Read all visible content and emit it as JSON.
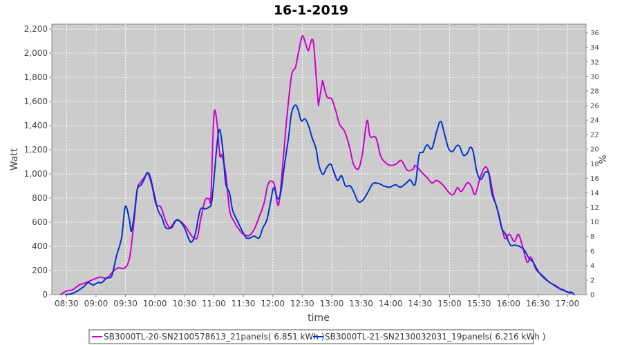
{
  "chart_data": {
    "type": "line",
    "title": "16-1-2019",
    "xlabel": "time",
    "ylabel": "Watt",
    "y2label": "%",
    "xlim": [
      "08:15",
      "17:19"
    ],
    "ylim": [
      0,
      2240
    ],
    "y2lim": [
      0,
      37.2
    ],
    "grid": true,
    "legend_position": "bottom",
    "x_ticks": [
      "08:30",
      "09:00",
      "09:30",
      "10:00",
      "10:30",
      "11:00",
      "11:30",
      "12:00",
      "12:30",
      "13:00",
      "13:30",
      "14:00",
      "14:30",
      "15:00",
      "15:30",
      "16:00",
      "16:30",
      "17:00"
    ],
    "y_ticks": [
      0,
      200,
      400,
      600,
      800,
      1000,
      1200,
      1400,
      1600,
      1800,
      2000,
      2200
    ],
    "y_tick_labels": [
      "0",
      "200",
      "400",
      "600",
      "800",
      "1,000",
      "1,200",
      "1,400",
      "1,600",
      "1,800",
      "2,000",
      "2,200"
    ],
    "y2_ticks": [
      0,
      2,
      4,
      6,
      8,
      10,
      12,
      14,
      16,
      18,
      20,
      22,
      24,
      26,
      28,
      30,
      32,
      34,
      36
    ],
    "series": [
      {
        "name": "SB3000TL-20-SN2100578613_21panels( 6.851 kWh )",
        "color": "#cc00cc",
        "x": [
          "08:24",
          "08:30",
          "08:36",
          "08:43",
          "08:50",
          "08:57",
          "09:04",
          "09:11",
          "09:16",
          "09:22",
          "09:29",
          "09:34",
          "09:38",
          "09:42",
          "09:45",
          "09:50",
          "09:53",
          "09:57",
          "10:01",
          "10:06",
          "10:11",
          "10:15",
          "10:18",
          "10:22",
          "10:27",
          "10:32",
          "10:38",
          "10:43",
          "10:46",
          "10:51",
          "10:55",
          "10:57",
          "11:00",
          "11:03",
          "11:06",
          "11:08",
          "11:12",
          "11:16",
          "11:21",
          "11:25",
          "11:30",
          "11:36",
          "11:41",
          "11:46",
          "11:51",
          "11:55",
          "11:59",
          "12:02",
          "12:06",
          "12:11",
          "12:14",
          "12:19",
          "12:23",
          "12:26",
          "12:30",
          "12:33",
          "12:36",
          "12:38",
          "12:40",
          "12:42",
          "12:46",
          "12:47",
          "12:50",
          "12:51",
          "12:55",
          "13:00",
          "13:04",
          "13:08",
          "13:13",
          "13:18",
          "13:22",
          "13:27",
          "13:31",
          "13:36",
          "13:39",
          "13:45",
          "13:50",
          "13:56",
          "14:01",
          "14:06",
          "14:11",
          "14:17",
          "14:23",
          "14:25",
          "14:32",
          "14:37",
          "14:42",
          "14:47",
          "14:53",
          "15:00",
          "15:04",
          "15:08",
          "15:12",
          "15:18",
          "15:22",
          "15:26",
          "15:31",
          "15:36",
          "15:40",
          "15:45",
          "15:50",
          "15:56",
          "16:01",
          "16:06",
          "16:10",
          "16:14",
          "16:19",
          "16:23",
          "16:28",
          "16:35",
          "16:42",
          "16:49",
          "16:54",
          "16:58",
          "17:03"
        ],
        "values": [
          0,
          30,
          40,
          80,
          100,
          125,
          145,
          135,
          180,
          220,
          220,
          300,
          550,
          870,
          925,
          980,
          1000,
          900,
          750,
          725,
          610,
          555,
          580,
          620,
          600,
          555,
          480,
          470,
          600,
          780,
          795,
          810,
          1480,
          1440,
          1155,
          1155,
          1010,
          700,
          600,
          545,
          500,
          490,
          540,
          640,
          755,
          910,
          940,
          900,
          745,
          1155,
          1440,
          1810,
          1880,
          2000,
          2140,
          2090,
          2020,
          2070,
          2115,
          2040,
          1610,
          1595,
          1740,
          1765,
          1640,
          1620,
          1525,
          1410,
          1355,
          1230,
          1085,
          1040,
          1155,
          1440,
          1310,
          1300,
          1145,
          1085,
          1070,
          1085,
          1110,
          1030,
          1040,
          1070,
          1010,
          970,
          925,
          945,
          910,
          840,
          830,
          885,
          855,
          925,
          900,
          830,
          965,
          1055,
          1010,
          810,
          670,
          470,
          500,
          440,
          500,
          410,
          270,
          310,
          210,
          155,
          100,
          70,
          40,
          30,
          10
        ]
      },
      {
        "name": "SB3000TL-21-SN2130032031_19panels( 6.216 kWh )",
        "color": "#0033cc",
        "x": [
          "08:29",
          "08:36",
          "08:43",
          "08:48",
          "08:52",
          "08:57",
          "09:02",
          "09:06",
          "09:11",
          "09:16",
          "09:21",
          "09:26",
          "09:29",
          "09:31",
          "09:34",
          "09:36",
          "09:39",
          "09:42",
          "09:46",
          "09:49",
          "09:52",
          "09:55",
          "09:59",
          "10:03",
          "10:07",
          "10:11",
          "10:17",
          "10:21",
          "10:25",
          "10:30",
          "10:34",
          "10:37",
          "10:41",
          "10:46",
          "10:51",
          "10:55",
          "10:58",
          "11:02",
          "11:04",
          "11:06",
          "11:09",
          "11:12",
          "11:16",
          "11:19",
          "11:24",
          "11:29",
          "11:33",
          "11:37",
          "11:41",
          "11:46",
          "11:50",
          "11:54",
          "11:58",
          "12:01",
          "12:05",
          "12:08",
          "12:12",
          "12:16",
          "12:19",
          "12:23",
          "12:26",
          "12:29",
          "12:33",
          "12:37",
          "12:40",
          "12:44",
          "12:47",
          "12:51",
          "12:55",
          "12:59",
          "13:02",
          "13:06",
          "13:10",
          "13:14",
          "13:19",
          "13:23",
          "13:27",
          "13:32",
          "13:37",
          "13:42",
          "13:48",
          "13:53",
          "13:59",
          "14:05",
          "14:10",
          "14:16",
          "14:20",
          "14:25",
          "14:29",
          "14:33",
          "14:37",
          "14:42",
          "14:47",
          "14:51",
          "14:55",
          "14:59",
          "15:03",
          "15:07",
          "15:10",
          "15:14",
          "15:18",
          "15:21",
          "15:24",
          "15:28",
          "15:32",
          "15:36",
          "15:40",
          "15:43",
          "15:48",
          "15:53",
          "15:57",
          "16:02",
          "16:06",
          "16:11",
          "16:16",
          "16:21",
          "16:25",
          "16:31",
          "16:38",
          "16:45",
          "16:52",
          "16:56",
          "17:00",
          "17:04",
          "17:07"
        ],
        "values": [
          0,
          10,
          40,
          70,
          100,
          80,
          100,
          100,
          140,
          155,
          325,
          470,
          700,
          725,
          620,
          525,
          670,
          870,
          910,
          955,
          1010,
          980,
          840,
          700,
          640,
          555,
          555,
          610,
          610,
          555,
          470,
          435,
          500,
          700,
          710,
          725,
          780,
          1140,
          1300,
          1365,
          1210,
          925,
          840,
          700,
          610,
          525,
          470,
          470,
          485,
          470,
          555,
          620,
          780,
          885,
          795,
          840,
          1080,
          1300,
          1500,
          1570,
          1525,
          1440,
          1455,
          1385,
          1300,
          1210,
          1070,
          995,
          1055,
          1080,
          1020,
          945,
          985,
          900,
          900,
          840,
          770,
          785,
          850,
          920,
          920,
          900,
          890,
          910,
          890,
          925,
          950,
          915,
          1155,
          1180,
          1240,
          1210,
          1355,
          1435,
          1325,
          1210,
          1185,
          1230,
          1230,
          1155,
          1170,
          1220,
          1185,
          1010,
          955,
          1010,
          1000,
          840,
          725,
          555,
          500,
          410,
          410,
          400,
          370,
          300,
          270,
          185,
          125,
          85,
          50,
          40,
          20,
          20,
          0
        ]
      }
    ]
  }
}
